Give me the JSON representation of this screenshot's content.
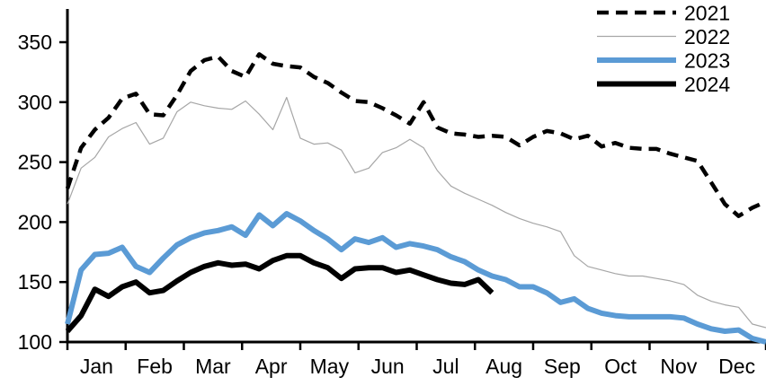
{
  "chart_data": {
    "type": "line",
    "title": "",
    "x_unit": "week-of-year",
    "grid": false,
    "legend_position": "top-right",
    "x_axis": {
      "months": [
        "Jan",
        "Feb",
        "Mar",
        "Apr",
        "May",
        "Jun",
        "Jul",
        "Aug",
        "Sep",
        "Oct",
        "Nov",
        "Dec"
      ]
    },
    "y_axis": {
      "min": 100,
      "max": 350,
      "ticks": [
        100,
        150,
        200,
        250,
        300,
        350
      ]
    },
    "colors": {
      "black": "#000000",
      "gray": "#a6a6a6",
      "blue": "#5b9bd5"
    },
    "series": [
      {
        "name": "2021",
        "style": "dashed",
        "color": "#000000",
        "width": 4.5,
        "values": [
          228,
          262,
          277,
          287,
          303,
          307,
          290,
          289,
          306,
          326,
          335,
          338,
          326,
          321,
          340,
          332,
          330,
          329,
          321,
          316,
          308,
          301,
          300,
          295,
          289,
          282,
          300,
          279,
          274,
          273,
          271,
          272,
          271,
          264,
          271,
          276,
          274,
          269,
          272,
          263,
          266,
          262,
          261,
          261,
          257,
          254,
          251,
          233,
          215,
          205,
          212,
          217
        ]
      },
      {
        "name": "2022",
        "style": "thin",
        "color": "#a6a6a6",
        "width": 1.2,
        "values": [
          215,
          245,
          254,
          271,
          278,
          283,
          265,
          270,
          292,
          300,
          297,
          295,
          294,
          301,
          290,
          277,
          304,
          270,
          265,
          266,
          260,
          241,
          245,
          258,
          262,
          269,
          262,
          243,
          230,
          224,
          219,
          214,
          208,
          203,
          199,
          196,
          192,
          172,
          163,
          160,
          157,
          155,
          155,
          153,
          151,
          148,
          139,
          134,
          131,
          129,
          115,
          112
        ]
      },
      {
        "name": "2023",
        "style": "solid",
        "color": "#5b9bd5",
        "width": 6,
        "values": [
          115,
          160,
          173,
          174,
          179,
          163,
          158,
          170,
          181,
          187,
          191,
          193,
          196,
          189,
          206,
          197,
          207,
          201,
          193,
          186,
          177,
          186,
          183,
          187,
          179,
          182,
          180,
          177,
          171,
          167,
          160,
          155,
          152,
          146,
          146,
          141,
          133,
          136,
          128,
          124,
          122,
          121,
          121,
          121,
          121,
          120,
          115,
          111,
          109,
          110,
          103,
          100
        ]
      },
      {
        "name": "2024",
        "style": "solid",
        "color": "#000000",
        "width": 6,
        "values": [
          109,
          122,
          144,
          138,
          146,
          150,
          141,
          143,
          151,
          158,
          163,
          166,
          164,
          165,
          161,
          168,
          172,
          172,
          166,
          162,
          153,
          161,
          162,
          162,
          158,
          160,
          156,
          152,
          149,
          148,
          152,
          141
        ]
      }
    ],
    "legend": [
      "2021",
      "2022",
      "2023",
      "2024"
    ]
  }
}
